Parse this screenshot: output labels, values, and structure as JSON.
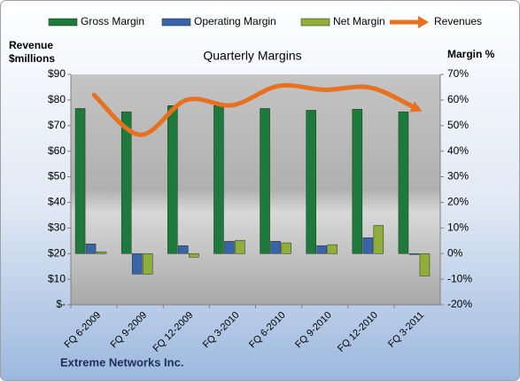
{
  "chart_data": {
    "type": "bar",
    "title": "Quarterly Margins",
    "y_label": [
      "Revenue",
      "$millions"
    ],
    "y2_label": "Margin %",
    "footer": "Extreme Networks Inc.",
    "categories": [
      "FQ 6-2009",
      "FQ 9-2009",
      "FQ 12-2009",
      "FQ 3-2010",
      "FQ 6-2010",
      "FQ 9-2010",
      "FQ 12-2010",
      "FQ 3-2011"
    ],
    "series": [
      {
        "name": "Gross Margin",
        "color": "#1e7a3c",
        "axis": "y2",
        "values": [
          56.7,
          55.4,
          57.8,
          57.8,
          56.7,
          56.0,
          56.4,
          55.4
        ]
      },
      {
        "name": "Operating Margin",
        "color": "#3a64a8",
        "axis": "y2",
        "values": [
          3.8,
          -8.0,
          3.1,
          4.8,
          4.8,
          3.1,
          6.2,
          -0.3
        ]
      },
      {
        "name": "Net Margin",
        "color": "#8fae3a",
        "axis": "y2",
        "values": [
          0.7,
          -8.0,
          -1.4,
          5.2,
          4.2,
          3.5,
          11.0,
          -8.7
        ]
      },
      {
        "name": "Revenues",
        "color": "#e8701e",
        "type": "line",
        "values": [
          82,
          66.4,
          80,
          78,
          85.5,
          84,
          84.8,
          76.5
        ]
      }
    ],
    "ylim": [
      0,
      90
    ],
    "yticks": [
      {
        "value": 0,
        "label": "$-"
      },
      {
        "value": 10,
        "label": "$10"
      },
      {
        "value": 20,
        "label": "$20"
      },
      {
        "value": 30,
        "label": "$30"
      },
      {
        "value": 40,
        "label": "$40"
      },
      {
        "value": 50,
        "label": "$50"
      },
      {
        "value": 60,
        "label": "$60"
      },
      {
        "value": 70,
        "label": "$70"
      },
      {
        "value": 80,
        "label": "$80"
      },
      {
        "value": 90,
        "label": "$90"
      }
    ],
    "y2lim": [
      -20,
      70
    ],
    "y2ticks": [
      {
        "value": -20,
        "label": "-20%"
      },
      {
        "value": -10,
        "label": "-10%"
      },
      {
        "value": 0,
        "label": "0%"
      },
      {
        "value": 10,
        "label": "10%"
      },
      {
        "value": 20,
        "label": "20%"
      },
      {
        "value": 30,
        "label": "30%"
      },
      {
        "value": 40,
        "label": "40%"
      },
      {
        "value": 50,
        "label": "50%"
      },
      {
        "value": 60,
        "label": "60%"
      },
      {
        "value": 70,
        "label": "70%"
      }
    ],
    "grid": false
  }
}
